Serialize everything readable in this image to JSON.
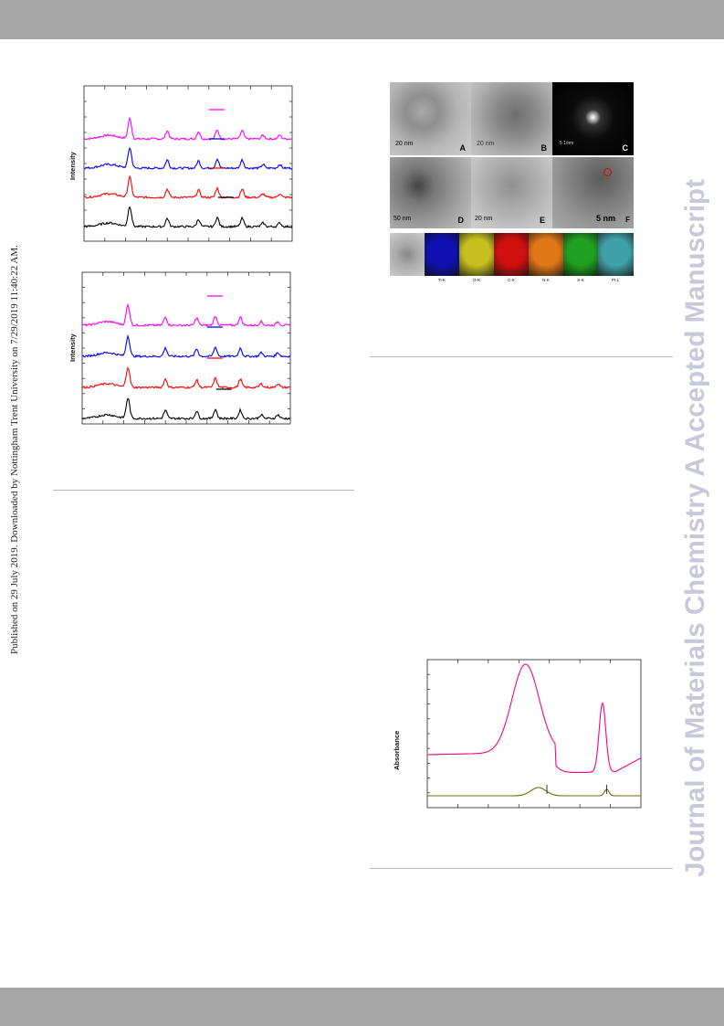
{
  "side_note": "Published on 29 July 2019. Downloaded by Nottingham Trent University on 7/29/2019 11:40:22 AM.",
  "watermark": "Journal of Materials Chemistry A Accepted Manuscript",
  "colors": {
    "header_bar": "#a6a6a6",
    "magenta": "#ff00ff",
    "blue": "#0000ff",
    "red": "#ff0000",
    "black": "#000000",
    "olive": "#6b6b00",
    "absorb_pink": "#ff0080",
    "watermark": "#c7c9db"
  },
  "chart_data": [
    {
      "type": "line",
      "ylabel": "Intensity",
      "grid": false,
      "legend": "top-right (line swatches only)",
      "series": [
        {
          "color": "#ff00ff",
          "peaks_x_fraction": [
            0.22,
            0.4,
            0.55,
            0.64,
            0.76,
            0.86,
            0.94
          ]
        },
        {
          "color": "#0000ff",
          "peaks_x_fraction": [
            0.22,
            0.4,
            0.55,
            0.64,
            0.76,
            0.86,
            0.94
          ]
        },
        {
          "color": "#ff0000",
          "peaks_x_fraction": [
            0.22,
            0.4,
            0.55,
            0.64,
            0.76,
            0.86,
            0.94
          ]
        },
        {
          "color": "#000000",
          "peaks_x_fraction": [
            0.22,
            0.4,
            0.55,
            0.64,
            0.76,
            0.86,
            0.94
          ]
        }
      ]
    },
    {
      "type": "line",
      "ylabel": "Intensity",
      "grid": false,
      "legend": "top-right (line swatches only)",
      "series": [
        {
          "color": "#ff00ff",
          "peaks_x_fraction": [
            0.22,
            0.4,
            0.55,
            0.64,
            0.76,
            0.86,
            0.94
          ]
        },
        {
          "color": "#0000ff",
          "peaks_x_fraction": [
            0.22,
            0.4,
            0.55,
            0.64,
            0.76,
            0.86,
            0.94
          ]
        },
        {
          "color": "#ff0000",
          "peaks_x_fraction": [
            0.22,
            0.4,
            0.55,
            0.64,
            0.76,
            0.86,
            0.94
          ]
        },
        {
          "color": "#000000",
          "peaks_x_fraction": [
            0.22,
            0.4,
            0.55,
            0.64,
            0.76,
            0.86,
            0.94
          ]
        }
      ]
    },
    {
      "type": "line",
      "ylabel": "Absorbance",
      "grid": false,
      "series": [
        {
          "color": "#ff0080",
          "peaks_x_fraction": [
            0.46,
            0.82
          ]
        },
        {
          "color": "#6b6b00",
          "markers_x_fraction": [
            0.56,
            0.84
          ]
        }
      ]
    }
  ],
  "tem_panels": {
    "labels": [
      "A",
      "B",
      "C",
      "D",
      "E",
      "F"
    ],
    "scale_bars": [
      "20 nm",
      "20 nm",
      "5 1/nm",
      "50 nm",
      "20 nm",
      "5 nm"
    ],
    "eds_maps": [
      {
        "label": "Ti-K",
        "color": "#1010b0"
      },
      {
        "label": "O-K",
        "color": "#c8c020"
      },
      {
        "label": "C-K",
        "color": "#d01010"
      },
      {
        "label": "N-K",
        "color": "#e07818"
      },
      {
        "label": "S-K",
        "color": "#20a020"
      },
      {
        "label": "Pt-L",
        "color": "#40a0a8"
      }
    ]
  }
}
